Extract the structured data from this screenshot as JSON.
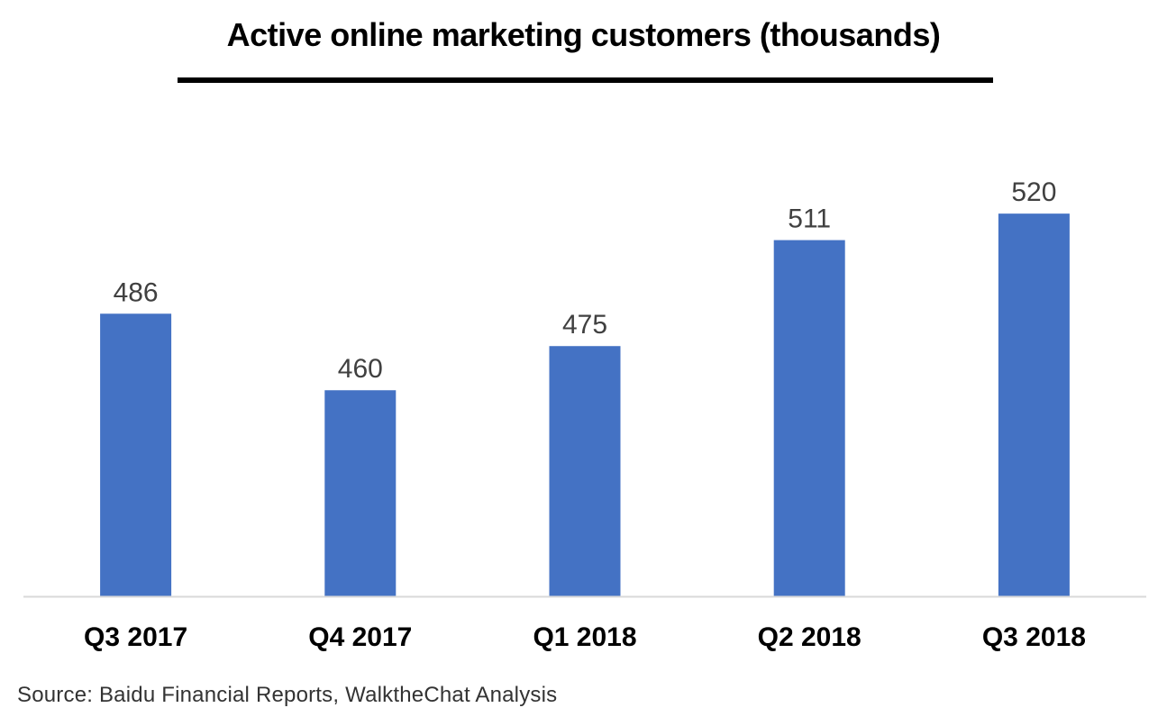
{
  "chart_data": {
    "type": "bar",
    "title": "Active online marketing customers (thousands)",
    "categories": [
      "Q3 2017",
      "Q4 2017",
      "Q1 2018",
      "Q2 2018",
      "Q3 2018"
    ],
    "values": [
      486,
      460,
      475,
      511,
      520
    ],
    "xlabel": "",
    "ylabel": "",
    "ylim": [
      390,
      543
    ],
    "grid": false,
    "legend": "none",
    "bar_color": "#4472C4",
    "label_color": "#404040",
    "axis_color": "#D9D9D9"
  },
  "source": "Source: Baidu Financial Reports, WalktheChat Analysis"
}
